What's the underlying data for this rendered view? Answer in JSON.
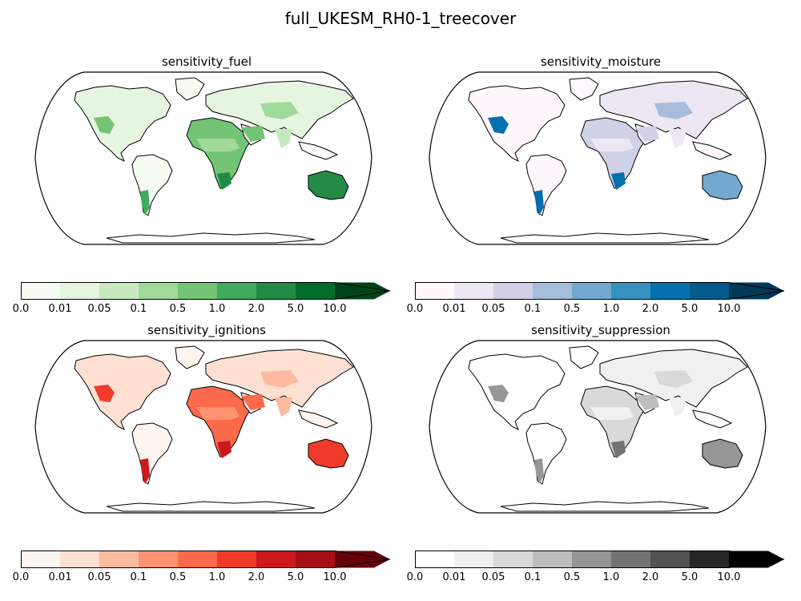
{
  "figure_title": "full_UKESM_RH0-1_treecover",
  "colorbar_ticks": [
    "0.0",
    "0.01",
    "0.05",
    "0.1",
    "0.5",
    "1.0",
    "2.0",
    "5.0",
    "10.0"
  ],
  "panels": [
    {
      "title": "sensitivity_fuel",
      "colormap": "Greens",
      "levels": [
        "#f7fcf5",
        "#e5f5e0",
        "#c7e9c0",
        "#a1d99b",
        "#74c476",
        "#41ab5d",
        "#238b45",
        "#006d2c",
        "#00441b"
      ],
      "region_levels": {
        "north_america": 1,
        "us_southwest": 4,
        "south_america": 0,
        "patagonia": 5,
        "africa": 4,
        "sahel": 3,
        "southern_africa": 6,
        "eurasia": 1,
        "central_asia": 3,
        "middle_east": 4,
        "india": 2,
        "australia": 6,
        "se_asia": 0,
        "antarctica": -1
      }
    },
    {
      "title": "sensitivity_moisture",
      "colormap": "PuBu",
      "levels": [
        "#fff7fb",
        "#ece7f2",
        "#d0d1e6",
        "#a6bddb",
        "#74a9cf",
        "#3690c0",
        "#0570b0",
        "#045a8d",
        "#023858"
      ],
      "region_levels": {
        "north_america": 0,
        "us_southwest": 6,
        "south_america": 0,
        "patagonia": 6,
        "africa": 2,
        "sahel": 1,
        "southern_africa": 6,
        "eurasia": 1,
        "central_asia": 3,
        "middle_east": 2,
        "india": 1,
        "australia": 4,
        "se_asia": 0,
        "antarctica": -1
      }
    },
    {
      "title": "sensitivity_ignitions",
      "colormap": "Reds",
      "levels": [
        "#fff5f0",
        "#fee0d2",
        "#fcbba1",
        "#fc9272",
        "#fb6a4a",
        "#ef3b2c",
        "#cb181d",
        "#a50f15",
        "#67000d"
      ],
      "region_levels": {
        "north_america": 1,
        "us_southwest": 5,
        "south_america": 0,
        "patagonia": 6,
        "africa": 4,
        "sahel": 3,
        "southern_africa": 6,
        "eurasia": 1,
        "central_asia": 2,
        "middle_east": 4,
        "india": 2,
        "australia": 5,
        "se_asia": 0,
        "antarctica": -1
      }
    },
    {
      "title": "sensitivity_suppression",
      "colormap": "Greys",
      "levels": [
        "#ffffff",
        "#f0f0f0",
        "#d9d9d9",
        "#bdbdbd",
        "#969696",
        "#737373",
        "#525252",
        "#252525",
        "#000000"
      ],
      "region_levels": {
        "north_america": 0,
        "us_southwest": 4,
        "south_america": 0,
        "patagonia": 4,
        "africa": 2,
        "sahel": 1,
        "southern_africa": 5,
        "eurasia": 1,
        "central_asia": 2,
        "middle_east": 3,
        "india": 1,
        "australia": 4,
        "se_asia": 0,
        "antarctica": -1
      }
    }
  ]
}
